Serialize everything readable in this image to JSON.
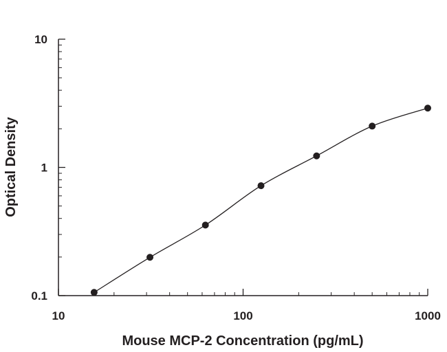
{
  "chart_data": {
    "type": "scatter",
    "title": "",
    "xlabel": "Mouse MCP-2 Concentration (pg/mL)",
    "ylabel": "Optical Density",
    "x_scale": "log",
    "y_scale": "log",
    "xlim": [
      10,
      1000
    ],
    "ylim": [
      0.1,
      10
    ],
    "x_ticks": [
      10,
      100,
      1000
    ],
    "x_tick_labels": [
      "10",
      "100",
      "1000"
    ],
    "y_ticks": [
      0.1,
      1,
      10
    ],
    "y_tick_labels": [
      "0.1",
      "1",
      "10"
    ],
    "grid": false,
    "legend": "none",
    "series": [
      {
        "points": [
          {
            "x": 15.6,
            "y": 0.106
          },
          {
            "x": 31.3,
            "y": 0.199
          },
          {
            "x": 62.5,
            "y": 0.355
          },
          {
            "x": 125,
            "y": 0.72
          },
          {
            "x": 250,
            "y": 1.23
          },
          {
            "x": 500,
            "y": 2.1
          },
          {
            "x": 1000,
            "y": 2.9
          }
        ],
        "fit_curve": "smooth curve through points",
        "fit_x_range": [
          15.6,
          1000
        ],
        "color": "#231f20"
      }
    ]
  }
}
